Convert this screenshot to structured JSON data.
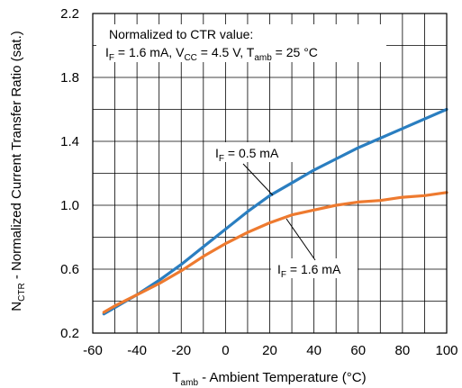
{
  "chart_data": {
    "type": "line",
    "xlabel": {
      "main": "T",
      "sub": "amb",
      "rest": " - Ambient Temperature (°C)"
    },
    "ylabel": {
      "main": "N",
      "sub": "CTR",
      "rest": " - Normalized Current Transfer Ratio (sat.)"
    },
    "xlim": [
      -60,
      100
    ],
    "ylim": [
      0.2,
      2.2
    ],
    "xticks": [
      "-60",
      "-40",
      "-20",
      "0",
      "20",
      "40",
      "60",
      "80",
      "100"
    ],
    "yticks": [
      "0.2",
      "0.6",
      "1.0",
      "1.4",
      "1.8",
      "2.2"
    ],
    "x_minor_step": 10,
    "y_minor_step": 0.2,
    "grid": true,
    "annotation": {
      "line1": "Normalized to CTR value:",
      "line2": [
        {
          "t": "I"
        },
        {
          "t": "F",
          "sub": true
        },
        {
          "t": " = 1.6 mA, V"
        },
        {
          "t": "CC",
          "sub": true
        },
        {
          "t": " = 4.5 V, T"
        },
        {
          "t": "amb",
          "sub": true
        },
        {
          "t": " = 25 °C"
        }
      ]
    },
    "series": [
      {
        "label": [
          {
            "t": "I"
          },
          {
            "t": "F",
            "sub": true
          },
          {
            "t": " = 0.5 mA"
          }
        ],
        "color": "#2a7ec0",
        "x": [
          -55,
          -50,
          -40,
          -30,
          -20,
          -10,
          0,
          10,
          20,
          30,
          40,
          50,
          60,
          70,
          80,
          90,
          100
        ],
        "y": [
          0.32,
          0.36,
          0.44,
          0.53,
          0.63,
          0.74,
          0.85,
          0.96,
          1.06,
          1.14,
          1.22,
          1.29,
          1.36,
          1.42,
          1.48,
          1.54,
          1.6
        ]
      },
      {
        "label": [
          {
            "t": "I"
          },
          {
            "t": "F",
            "sub": true
          },
          {
            "t": " = 1.6 mA"
          }
        ],
        "color": "#ee7a2f",
        "x": [
          -55,
          -50,
          -40,
          -30,
          -20,
          -10,
          0,
          10,
          20,
          30,
          40,
          50,
          60,
          70,
          80,
          90,
          100
        ],
        "y": [
          0.33,
          0.37,
          0.44,
          0.51,
          0.59,
          0.68,
          0.76,
          0.83,
          0.89,
          0.94,
          0.97,
          1.0,
          1.02,
          1.03,
          1.05,
          1.06,
          1.08
        ]
      }
    ]
  }
}
